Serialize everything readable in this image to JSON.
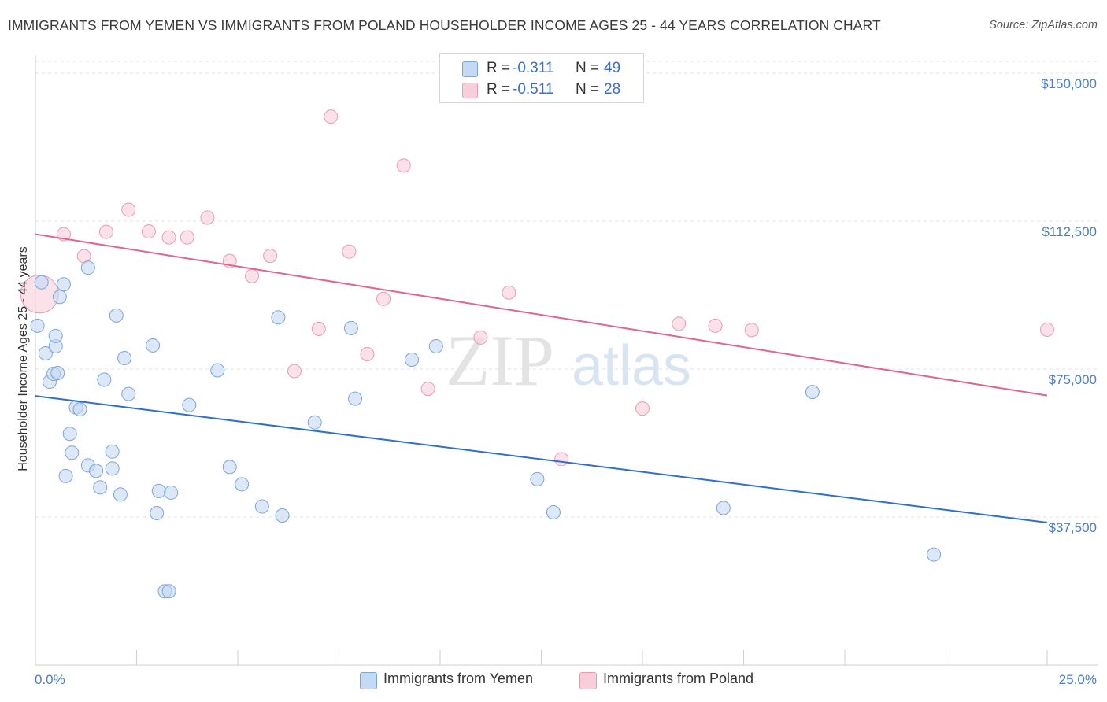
{
  "title": "IMMIGRANTS FROM YEMEN VS IMMIGRANTS FROM POLAND HOUSEHOLDER INCOME AGES 25 - 44 YEARS CORRELATION CHART",
  "source": "Source: ZipAtlas.com",
  "watermark": {
    "zip": "ZIP",
    "atlas": "atlas"
  },
  "colors": {
    "yemen_fill": "#c4d9f3",
    "yemen_stroke": "#7aa6dc",
    "yemen_line": "#2d6fd0",
    "poland_fill": "#f9cedb",
    "poland_stroke": "#ec9ab4",
    "poland_line": "#e0648e",
    "tick_text": "#4a7ec9"
  },
  "legend": {
    "rows": [
      {
        "r_label": "R =",
        "r_value": "-0.311",
        "n_label": "N =",
        "n_value": "49"
      },
      {
        "r_label": "R =",
        "r_value": "-0.511",
        "n_label": "N =",
        "n_value": "28"
      }
    ]
  },
  "bottom_legend": [
    "Immigrants from Yemen",
    "Immigrants from Poland"
  ],
  "chart_data": {
    "type": "scatter",
    "title": "IMMIGRANTS FROM YEMEN VS IMMIGRANTS FROM POLAND HOUSEHOLDER INCOME AGES 25 - 44 YEARS CORRELATION CHART",
    "xlabel": "",
    "ylabel": "Householder Income Ages 25 - 44 years",
    "xlim": [
      0,
      25
    ],
    "ylim": [
      0,
      153000
    ],
    "x_tick_labels": [
      "0.0%",
      "25.0%"
    ],
    "y_ticks": [
      37500,
      75000,
      112500,
      150000
    ],
    "y_tick_labels": [
      "$37,500",
      "$75,000",
      "$112,500",
      "$150,000"
    ],
    "series": [
      {
        "name": "Immigrants from Yemen",
        "r": -0.311,
        "n": 49,
        "trend": {
          "x0": 0,
          "y0": 68200,
          "x1": 25,
          "y1": 36100
        },
        "points": [
          [
            0.05,
            86000
          ],
          [
            0.15,
            97000
          ],
          [
            0.25,
            79000
          ],
          [
            0.35,
            71800
          ],
          [
            0.45,
            73800
          ],
          [
            0.5,
            80800
          ],
          [
            0.55,
            74000
          ],
          [
            0.6,
            93300
          ],
          [
            0.5,
            83400
          ],
          [
            0.7,
            96500
          ],
          [
            0.75,
            47900
          ],
          [
            0.85,
            58600
          ],
          [
            0.9,
            53800
          ],
          [
            1.0,
            65300
          ],
          [
            1.1,
            64800
          ],
          [
            1.3,
            100700
          ],
          [
            1.3,
            50600
          ],
          [
            1.5,
            49200
          ],
          [
            1.6,
            45000
          ],
          [
            1.7,
            72300
          ],
          [
            1.9,
            49800
          ],
          [
            1.9,
            54100
          ],
          [
            2.0,
            88600
          ],
          [
            2.1,
            43200
          ],
          [
            2.2,
            77800
          ],
          [
            2.3,
            68700
          ],
          [
            2.9,
            81000
          ],
          [
            3.0,
            38500
          ],
          [
            3.05,
            44100
          ],
          [
            3.2,
            18700
          ],
          [
            3.3,
            18700
          ],
          [
            3.35,
            43700
          ],
          [
            3.8,
            65900
          ],
          [
            4.5,
            74700
          ],
          [
            4.8,
            50200
          ],
          [
            5.1,
            45800
          ],
          [
            5.6,
            40200
          ],
          [
            6.0,
            88100
          ],
          [
            6.1,
            37900
          ],
          [
            6.9,
            61500
          ],
          [
            7.8,
            85400
          ],
          [
            7.9,
            67500
          ],
          [
            9.3,
            77400
          ],
          [
            9.9,
            80800
          ],
          [
            12.4,
            47100
          ],
          [
            12.8,
            38700
          ],
          [
            17.0,
            39800
          ],
          [
            19.2,
            69200
          ],
          [
            22.2,
            28000
          ]
        ]
      },
      {
        "name": "Immigrants from Poland",
        "r": -0.511,
        "n": 28,
        "trend": {
          "x0": 0,
          "y0": 109200,
          "x1": 25,
          "y1": 68300
        },
        "points": [
          [
            0.1,
            94000
          ],
          [
            0.7,
            109200
          ],
          [
            1.2,
            103600
          ],
          [
            1.75,
            109800
          ],
          [
            2.3,
            115400
          ],
          [
            2.8,
            109900
          ],
          [
            3.3,
            108400
          ],
          [
            3.75,
            108400
          ],
          [
            4.25,
            113400
          ],
          [
            4.8,
            102400
          ],
          [
            5.35,
            98600
          ],
          [
            5.8,
            103700
          ],
          [
            6.4,
            74500
          ],
          [
            7.0,
            85200
          ],
          [
            7.3,
            139000
          ],
          [
            7.75,
            104800
          ],
          [
            8.2,
            78800
          ],
          [
            8.6,
            92800
          ],
          [
            9.1,
            126600
          ],
          [
            9.7,
            70000
          ],
          [
            11.0,
            83000
          ],
          [
            11.7,
            94400
          ],
          [
            13.0,
            52200
          ],
          [
            15.0,
            65000
          ],
          [
            15.9,
            86500
          ],
          [
            16.8,
            86000
          ],
          [
            17.7,
            84900
          ],
          [
            25.0,
            85000
          ]
        ]
      }
    ]
  }
}
